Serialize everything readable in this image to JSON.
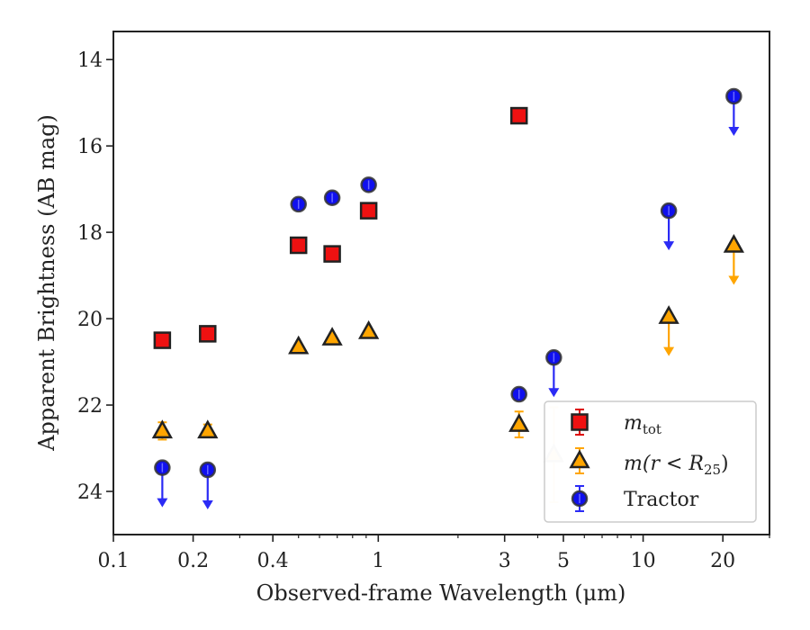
{
  "chart_data": {
    "type": "scatter",
    "xlabel": "Observed-frame Wavelength (μm)",
    "ylabel": "Apparent Brightness (AB mag)",
    "xscale": "log",
    "xlim": [
      0.1,
      30
    ],
    "ylim": [
      25.0,
      13.35
    ],
    "y_inverted": true,
    "xticks": [
      {
        "value": 0.1,
        "label": "0.1"
      },
      {
        "value": 0.2,
        "label": "0.2"
      },
      {
        "value": 0.4,
        "label": "0.4"
      },
      {
        "value": 1,
        "label": "1"
      },
      {
        "value": 3,
        "label": "3"
      },
      {
        "value": 5,
        "label": "5"
      },
      {
        "value": 10,
        "label": "10"
      },
      {
        "value": 20,
        "label": "20"
      }
    ],
    "yticks": [
      14,
      16,
      18,
      20,
      22,
      24
    ],
    "grid": false,
    "legend": "lower-right",
    "series": [
      {
        "name": "m_tot",
        "marker": "square",
        "color": "#ee1111",
        "errcolor": "#dd0000",
        "points": [
          {
            "x": 0.153,
            "y": 20.5
          },
          {
            "x": 0.227,
            "y": 20.35
          },
          {
            "x": 0.5,
            "y": 18.3
          },
          {
            "x": 0.67,
            "y": 18.5
          },
          {
            "x": 0.92,
            "y": 17.5
          },
          {
            "x": 3.4,
            "y": 15.3
          }
        ]
      },
      {
        "name": "m(r < R25)",
        "marker": "triangle",
        "color": "#ffa500",
        "errcolor": "#ffa500",
        "points": [
          {
            "x": 0.153,
            "y": 22.6,
            "err": 0.2
          },
          {
            "x": 0.227,
            "y": 22.6,
            "err": 0.15
          },
          {
            "x": 0.5,
            "y": 20.65
          },
          {
            "x": 0.67,
            "y": 20.45
          },
          {
            "x": 0.92,
            "y": 20.3
          },
          {
            "x": 3.4,
            "y": 22.45,
            "err": 0.3
          },
          {
            "x": 4.6,
            "y": 23.15,
            "err": 1.1,
            "faded": true
          },
          {
            "x": 12.5,
            "y": 19.95,
            "upper_limit": true
          },
          {
            "x": 22,
            "y": 18.3,
            "upper_limit": true
          }
        ]
      },
      {
        "name": "Tractor",
        "marker": "circle",
        "color": "#1010ee",
        "errcolor": "#2b2bf5",
        "points": [
          {
            "x": 0.153,
            "y": 23.45,
            "upper_limit": true
          },
          {
            "x": 0.227,
            "y": 23.5,
            "upper_limit": true
          },
          {
            "x": 0.5,
            "y": 17.35
          },
          {
            "x": 0.67,
            "y": 17.2
          },
          {
            "x": 0.92,
            "y": 16.9
          },
          {
            "x": 3.4,
            "y": 21.75
          },
          {
            "x": 4.6,
            "y": 20.9,
            "upper_limit": true
          },
          {
            "x": 12.5,
            "y": 17.5,
            "upper_limit": true
          },
          {
            "x": 22,
            "y": 14.85,
            "upper_limit": true
          }
        ]
      }
    ]
  },
  "legend": {
    "entries": [
      {
        "symbol": "m",
        "sub": "tot"
      },
      {
        "symbol": "m(r < R",
        "sub": "25",
        "tail": ")"
      },
      {
        "symbol": "Tractor",
        "sub": "",
        "tail": ""
      }
    ]
  }
}
